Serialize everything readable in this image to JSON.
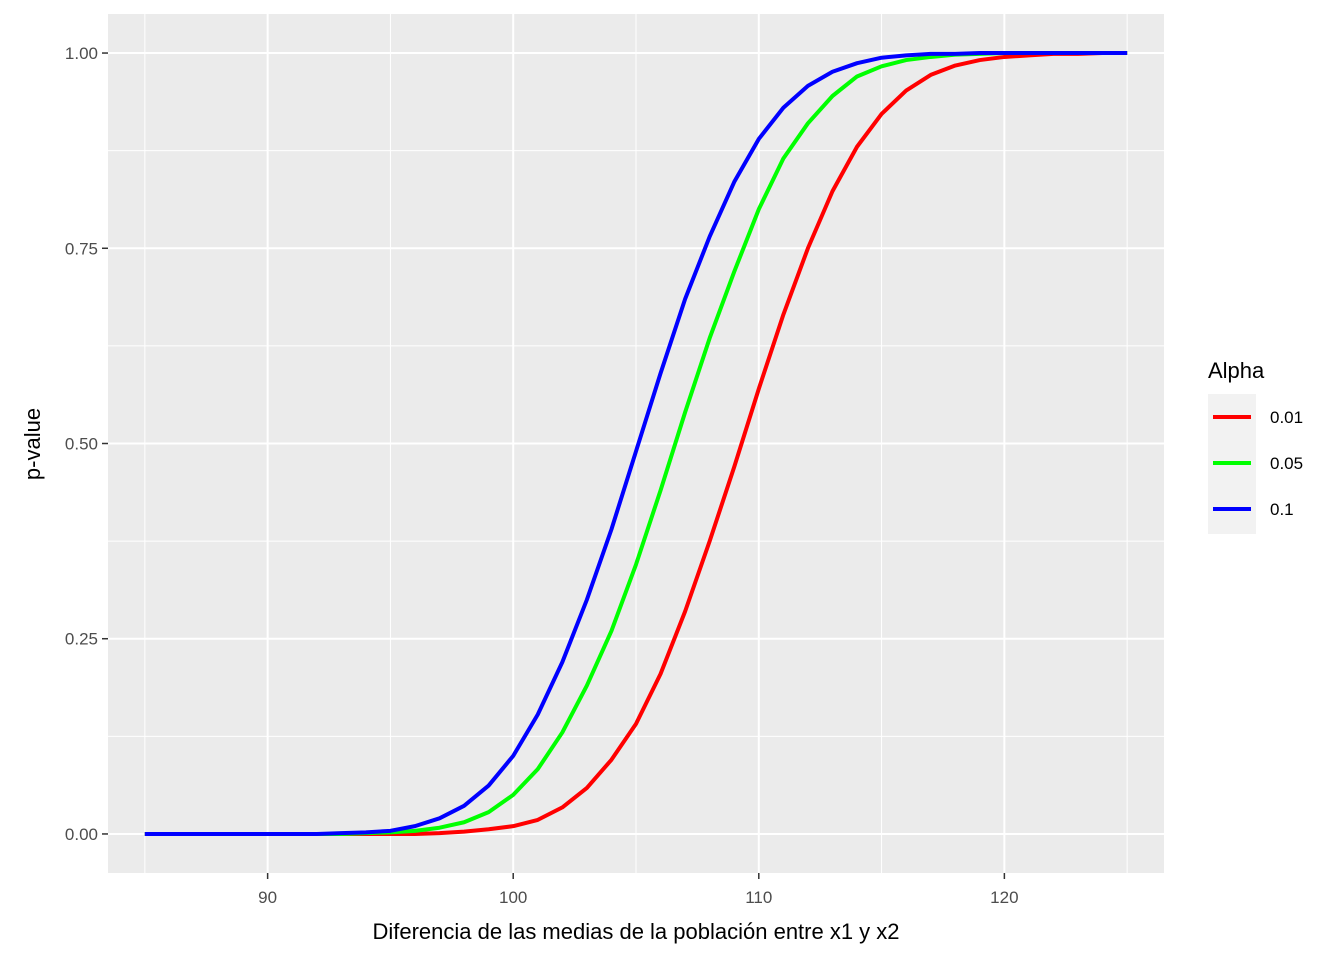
{
  "chart_data": {
    "type": "line",
    "title": "",
    "xlabel": "Diferencia de las medias de la población entre x1 y x2",
    "ylabel": "p-value",
    "xlim": [
      83.5,
      126.5
    ],
    "ylim": [
      -0.05,
      1.05
    ],
    "x_ticks": [
      90,
      100,
      110,
      120
    ],
    "x_tick_labels": [
      "90",
      "100",
      "110",
      "120"
    ],
    "y_ticks": [
      0,
      0.25,
      0.5,
      0.75,
      1.0
    ],
    "y_tick_labels": [
      "0.00",
      "0.25",
      "0.50",
      "0.75",
      "1.00"
    ],
    "grid": true,
    "background": "#EBEBEB",
    "grid_color": "#FFFFFF",
    "legend": {
      "title": "Alpha",
      "position": "right"
    },
    "x": [
      85,
      86,
      87,
      88,
      89,
      90,
      91,
      92,
      93,
      94,
      95,
      96,
      97,
      98,
      99,
      100,
      101,
      102,
      103,
      104,
      105,
      106,
      107,
      108,
      109,
      110,
      111,
      112,
      113,
      114,
      115,
      116,
      117,
      118,
      119,
      120,
      121,
      122,
      123,
      124,
      125
    ],
    "series": [
      {
        "name": "0.01",
        "color": "#FF0000",
        "values": [
          0,
          0,
          0,
          0,
          0,
          0,
          0,
          0,
          0,
          0,
          0,
          0,
          0.001,
          0.003,
          0.006,
          0.01,
          0.018,
          0.034,
          0.059,
          0.095,
          0.141,
          0.205,
          0.285,
          0.375,
          0.47,
          0.57,
          0.665,
          0.75,
          0.823,
          0.88,
          0.922,
          0.952,
          0.972,
          0.984,
          0.991,
          0.995,
          0.997,
          0.999,
          0.999,
          1.0,
          1.0
        ]
      },
      {
        "name": "0.05",
        "color": "#00FF00",
        "values": [
          0,
          0,
          0,
          0,
          0,
          0,
          0,
          0,
          0,
          0.001,
          0.002,
          0.004,
          0.008,
          0.015,
          0.028,
          0.05,
          0.083,
          0.13,
          0.19,
          0.26,
          0.345,
          0.44,
          0.54,
          0.635,
          0.72,
          0.8,
          0.865,
          0.91,
          0.945,
          0.97,
          0.983,
          0.991,
          0.995,
          0.998,
          0.999,
          1.0,
          1.0,
          1.0,
          1.0,
          1.0,
          1.0
        ]
      },
      {
        "name": "0.1",
        "color": "#0000FF",
        "values": [
          0,
          0,
          0,
          0,
          0,
          0,
          0,
          0,
          0.001,
          0.002,
          0.004,
          0.01,
          0.02,
          0.036,
          0.062,
          0.1,
          0.153,
          0.22,
          0.3,
          0.39,
          0.49,
          0.59,
          0.685,
          0.765,
          0.835,
          0.89,
          0.93,
          0.958,
          0.976,
          0.987,
          0.994,
          0.997,
          0.999,
          0.999,
          1.0,
          1.0,
          1.0,
          1.0,
          1.0,
          1.0,
          1.0
        ]
      }
    ]
  }
}
